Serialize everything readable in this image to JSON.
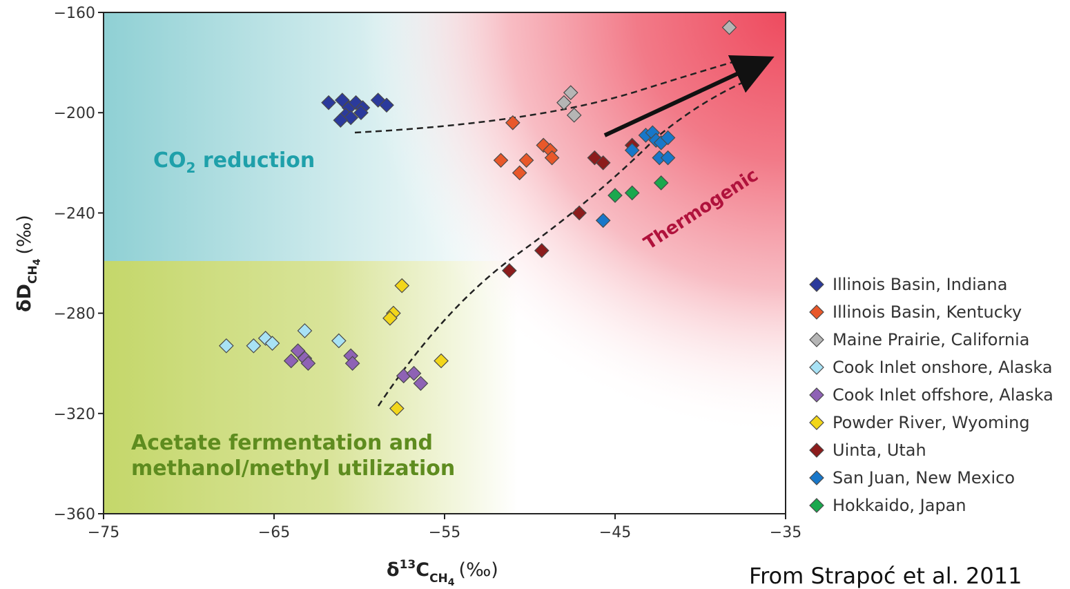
{
  "chart_data": {
    "type": "scatter",
    "xlabel": {
      "main": "δ",
      "sup": "13",
      "base": "C",
      "sub": "CH",
      "subsub": "4",
      "unit": "(‰)"
    },
    "ylabel": {
      "main": "δD",
      "sub": "CH",
      "subsub": "4",
      "unit": "(‰)"
    },
    "xlim": [
      -75,
      -35
    ],
    "ylim": [
      -360,
      -160
    ],
    "xticks": [
      -75,
      -65,
      -55,
      -45,
      -35
    ],
    "yticks": [
      -160,
      -200,
      -240,
      -280,
      -320,
      -360
    ],
    "grid": false,
    "legend_placement": "right",
    "regions": [
      {
        "label": "CO",
        "label_sub": "2",
        "label_rest": " reduction",
        "color": "#1fa0aa"
      },
      {
        "label": "Acetate fermentation and",
        "label2": "methanol/methyl utilization",
        "color": "#5e8c1f"
      },
      {
        "label": "Thermogenic",
        "color": "#c0143c"
      }
    ],
    "series": [
      {
        "name": "Illinois Basin, Indiana",
        "color": "#2b3a9c",
        "filled": true,
        "x": [
          -61.8,
          -61.0,
          -60.6,
          -60.2,
          -59.8,
          -60.8,
          -59.9,
          -58.9,
          -58.4,
          -60.5,
          -61.1
        ],
        "y": [
          -196,
          -195,
          -198,
          -196,
          -198,
          -201,
          -200,
          -195,
          -197,
          -202,
          -203
        ]
      },
      {
        "name": "Illinois Basin, Kentucky",
        "color": "#e8582a",
        "filled": true,
        "x": [
          -51.0,
          -49.2,
          -48.8,
          -48.7,
          -50.2,
          -50.6,
          -51.7
        ],
        "y": [
          -204,
          -213,
          -215,
          -218,
          -219,
          -224,
          -219
        ]
      },
      {
        "name": "Maine Prairie, California",
        "color": "#b5b5b5",
        "filled": true,
        "x": [
          -47.6,
          -48.0,
          -47.4,
          -38.3
        ],
        "y": [
          -192,
          -196,
          -201,
          -166
        ]
      },
      {
        "name": "Cook Inlet onshore, Alaska",
        "color": "#a8e2f5",
        "filled": true,
        "x": [
          -67.8,
          -66.2,
          -65.5,
          -65.1,
          -63.2,
          -61.2
        ],
        "y": [
          -293,
          -293,
          -290,
          -292,
          -287,
          -291
        ]
      },
      {
        "name": "Cook Inlet offshore, Alaska",
        "color": "#8e62b5",
        "filled": true,
        "x": [
          -64.0,
          -63.6,
          -63.2,
          -63.0,
          -60.5,
          -60.4,
          -57.4,
          -56.8,
          -56.4
        ],
        "y": [
          -299,
          -295,
          -298,
          -300,
          -297,
          -300,
          -305,
          -304,
          -308
        ]
      },
      {
        "name": "Powder River, Wyoming",
        "color": "#f2d61a",
        "filled": true,
        "x": [
          -57.5,
          -58.0,
          -58.2,
          -55.2,
          -57.8
        ],
        "y": [
          -269,
          -280,
          -282,
          -299,
          -318
        ]
      },
      {
        "name": "Uinta, Utah",
        "color": "#8c1c1c",
        "filled": true,
        "x": [
          -46.2,
          -45.7,
          -47.1,
          -49.3,
          -51.2,
          -44.0
        ],
        "y": [
          -218,
          -220,
          -240,
          -255,
          -263,
          -213
        ]
      },
      {
        "name": "San Juan, New Mexico",
        "color": "#1877c9",
        "filled": true,
        "x": [
          -43.2,
          -42.8,
          -42.6,
          -42.3,
          -41.9,
          -42.4,
          -41.9,
          -44.0,
          -45.7
        ],
        "y": [
          -209,
          -208,
          -211,
          -212,
          -210,
          -218,
          -218,
          -215,
          -243
        ]
      },
      {
        "name": "Hokkaido, Japan",
        "color": "#1aa84e",
        "filled": true,
        "x": [
          -45.0,
          -44.0,
          -42.3
        ],
        "y": [
          -233,
          -232,
          -228
        ]
      }
    ],
    "annotations": {
      "source": "From Strapoć et al. 2011"
    }
  }
}
